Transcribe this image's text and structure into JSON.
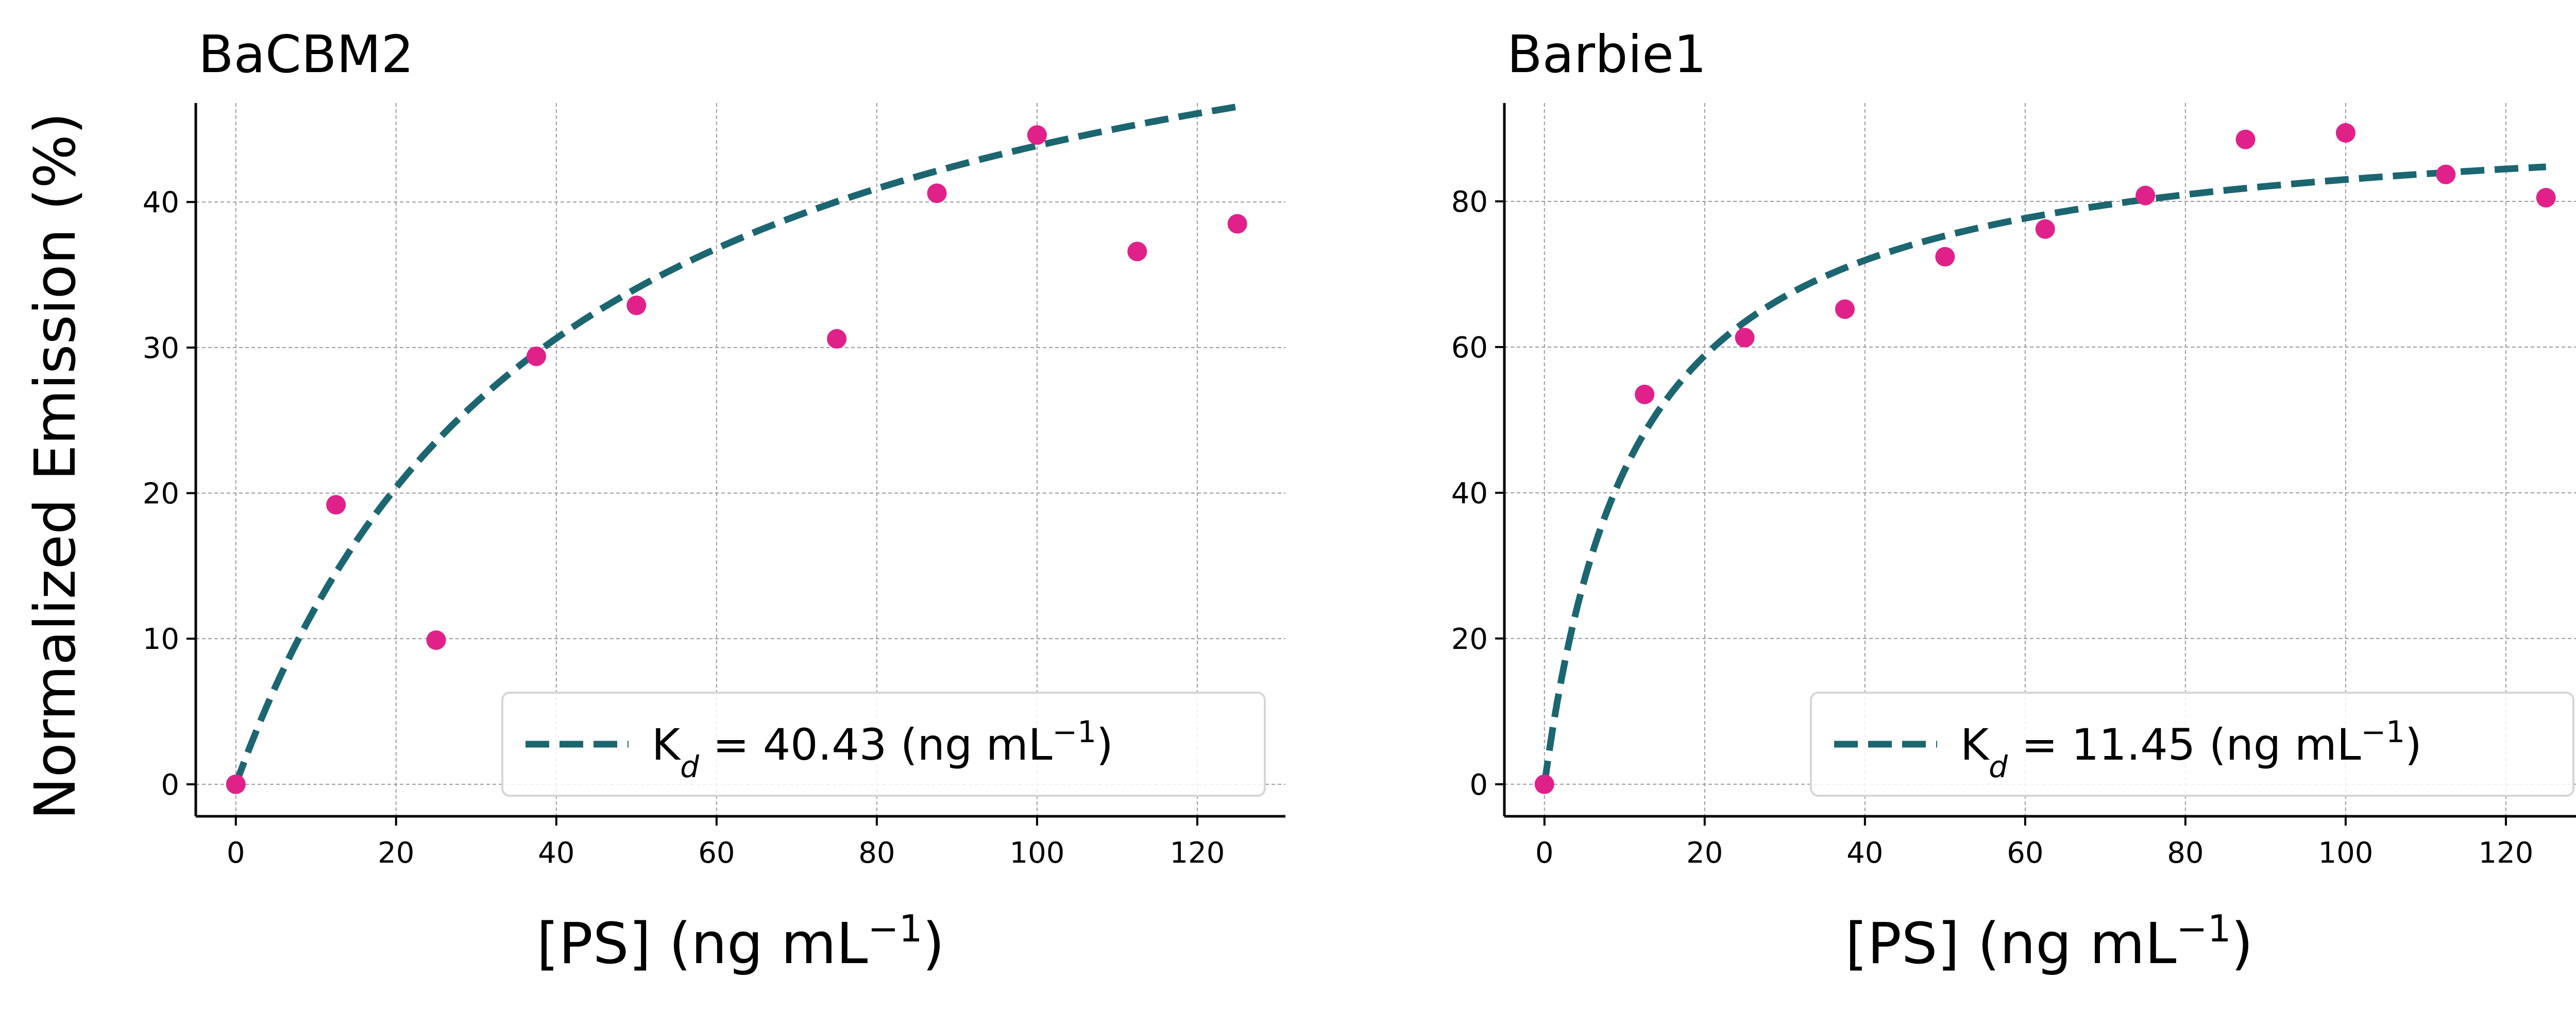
{
  "chart_data": [
    {
      "type": "scatter",
      "title": "BaCBM2",
      "xlabel": "[PS] (ng mL",
      "xlabel_sup": "−1",
      "xlabel_end": ")",
      "ylabel": "Normalized Emission (%)",
      "xlim": [
        -5,
        131
      ],
      "ylim": [
        -2.2,
        46.8
      ],
      "xticks": [
        0,
        20,
        40,
        60,
        80,
        100,
        120
      ],
      "yticks": [
        0,
        10,
        20,
        30,
        40
      ],
      "grid": true,
      "legend_position": "lower-right",
      "legend_label": {
        "pre": "K",
        "sub": "d",
        "mid": " = 40.43 (ng mL",
        "sup": "−1",
        "post": ")"
      },
      "colors": {
        "points": "#E0218A",
        "fit": "#1B6670"
      },
      "points": {
        "x": [
          0,
          12.5,
          25,
          37.5,
          50,
          75,
          87.5,
          100,
          112.5,
          125
        ],
        "y": [
          0,
          19.2,
          9.9,
          29.4,
          32.9,
          30.6,
          40.6,
          44.6,
          36.6,
          38.5
        ]
      },
      "fit": {
        "model": "one-site binding",
        "Bmax": 61.6,
        "Kd": 40.43,
        "x_range": [
          0,
          125
        ]
      }
    },
    {
      "type": "scatter",
      "title": "Barbie1",
      "xlabel": "[PS] (ng mL",
      "xlabel_sup": "−1",
      "xlabel_end": ")",
      "ylabel": "",
      "xlim": [
        -5,
        131
      ],
      "ylim": [
        -4.4,
        93.5
      ],
      "xticks": [
        0,
        20,
        40,
        60,
        80,
        100,
        120
      ],
      "yticks": [
        0,
        20,
        40,
        60,
        80
      ],
      "grid": true,
      "legend_position": "lower-right",
      "legend_label": {
        "pre": "K",
        "sub": "d",
        "mid": " = 11.45 (ng mL",
        "sup": "−1",
        "post": ")"
      },
      "colors": {
        "points": "#E0218A",
        "fit": "#1B6670"
      },
      "points": {
        "x": [
          0,
          12.5,
          25,
          37.5,
          50,
          62.5,
          75,
          87.5,
          100,
          112.5,
          125
        ],
        "y": [
          0,
          53.5,
          61.3,
          65.2,
          72.4,
          76.2,
          80.8,
          88.5,
          89.4,
          83.7,
          80.5
        ]
      },
      "fit": {
        "model": "one-site binding",
        "Bmax": 92.5,
        "Kd": 11.45,
        "x_range": [
          0,
          125
        ]
      }
    }
  ]
}
